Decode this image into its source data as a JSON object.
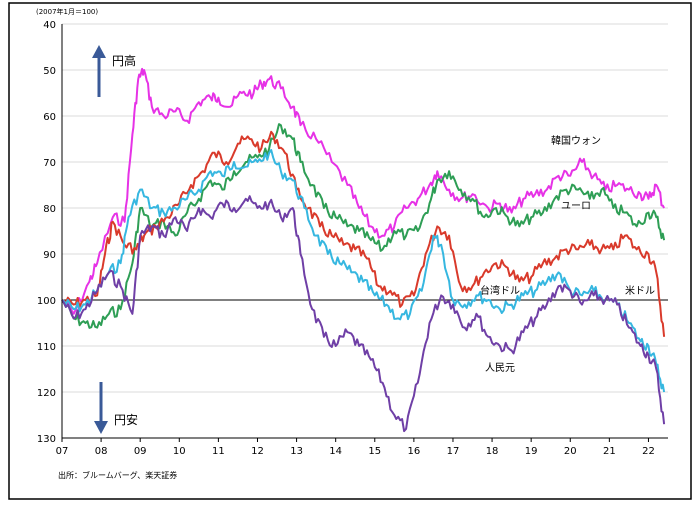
{
  "chart_data": {
    "type": "line",
    "note_top": "(2007年1月＝100)",
    "source": "出所：ブルームバーグ、楽天証券",
    "annotation_up": "円高",
    "annotation_down": "円安",
    "yaxis": {
      "min": 40,
      "max": 130,
      "ticks": [
        40,
        50,
        60,
        70,
        80,
        90,
        100,
        110,
        120,
        130
      ],
      "inverted": true
    },
    "xaxis": {
      "min": 2007,
      "max": 2022.5,
      "tick_labels": [
        "07",
        "08",
        "09",
        "10",
        "11",
        "12",
        "13",
        "14",
        "15",
        "16",
        "17",
        "18",
        "19",
        "20",
        "21",
        "22"
      ]
    },
    "reference_line": 100,
    "colors": {
      "korea": "#e632e6",
      "euro": "#2e9e55",
      "usd": "#d93a2b",
      "twd": "#36b7e0",
      "cny": "#6f3fa6",
      "axis": "#000000",
      "grid": "#cfcfcf"
    },
    "series": [
      {
        "key": "korea",
        "name": "韓国ウォン",
        "x": [
          2007.0,
          2007.3,
          2007.7,
          2007.9,
          2008.3,
          2008.6,
          2008.8,
          2008.95,
          2009.1,
          2009.3,
          2009.6,
          2009.9,
          2010.2,
          2010.5,
          2010.8,
          2011.0,
          2011.3,
          2011.6,
          2011.9,
          2012.1,
          2012.3,
          2012.6,
          2012.9,
          2013.1,
          2013.5,
          2013.9,
          2014.3,
          2014.6,
          2014.9,
          2015.2,
          2015.5,
          2015.8,
          2016.1,
          2016.4,
          2016.6,
          2016.9,
          2017.2,
          2017.5,
          2017.9,
          2018.2,
          2018.5,
          2018.8,
          2019.1,
          2019.4,
          2019.7,
          2020.0,
          2020.3,
          2020.6,
          2020.9,
          2021.2,
          2021.5,
          2021.8,
          2022.0,
          2022.2,
          2022.4
        ],
        "values": [
          100,
          103,
          96,
          92,
          82,
          83,
          64,
          52,
          50,
          58,
          60,
          59,
          61,
          57,
          56,
          56,
          58,
          55,
          55,
          53,
          52,
          54,
          58,
          62,
          65,
          70,
          75,
          80,
          84,
          86,
          84,
          80,
          78,
          75,
          72,
          76,
          78,
          77,
          80,
          79,
          81,
          78,
          77,
          76,
          73,
          73,
          70,
          73,
          76,
          75,
          76,
          77,
          78,
          75,
          80
        ]
      },
      {
        "key": "euro",
        "name": "ユーロ",
        "x": [
          2007.0,
          2007.3,
          2007.6,
          2007.9,
          2008.2,
          2008.5,
          2008.8,
          2009.0,
          2009.3,
          2009.6,
          2009.9,
          2010.2,
          2010.5,
          2010.8,
          2011.1,
          2011.4,
          2011.7,
          2012.0,
          2012.3,
          2012.6,
          2012.9,
          2013.1,
          2013.4,
          2013.7,
          2014.0,
          2014.3,
          2014.6,
          2014.9,
          2015.2,
          2015.5,
          2015.8,
          2016.1,
          2016.4,
          2016.6,
          2016.9,
          2017.2,
          2017.5,
          2017.8,
          2018.1,
          2018.4,
          2018.7,
          2019.0,
          2019.3,
          2019.6,
          2019.9,
          2020.2,
          2020.5,
          2020.8,
          2021.1,
          2021.4,
          2021.7,
          2022.0,
          2022.2,
          2022.4
        ],
        "values": [
          100,
          104,
          105,
          106,
          103,
          102,
          92,
          80,
          84,
          83,
          86,
          81,
          78,
          74,
          76,
          72,
          70,
          69,
          67,
          62,
          65,
          70,
          75,
          80,
          82,
          84,
          85,
          87,
          89,
          85,
          86,
          85,
          79,
          74,
          72,
          76,
          78,
          82,
          80,
          82,
          84,
          82,
          81,
          78,
          76,
          76,
          78,
          76,
          80,
          81,
          84,
          81,
          82,
          87
        ]
      },
      {
        "key": "usd",
        "name": "米ドル",
        "x": [
          2007.0,
          2007.3,
          2007.6,
          2007.9,
          2008.1,
          2008.3,
          2008.6,
          2008.9,
          2009.1,
          2009.4,
          2009.7,
          2010.0,
          2010.3,
          2010.6,
          2010.9,
          2011.2,
          2011.5,
          2011.8,
          2012.1,
          2012.4,
          2012.7,
          2013.0,
          2013.3,
          2013.6,
          2013.9,
          2014.2,
          2014.5,
          2014.8,
          2015.1,
          2015.4,
          2015.7,
          2016.0,
          2016.3,
          2016.6,
          2016.9,
          2017.2,
          2017.5,
          2017.8,
          2018.1,
          2018.4,
          2018.7,
          2019.0,
          2019.3,
          2019.6,
          2019.9,
          2020.2,
          2020.5,
          2020.8,
          2021.1,
          2021.4,
          2021.7,
          2022.0,
          2022.2,
          2022.4
        ],
        "values": [
          100,
          101,
          100,
          99,
          90,
          83,
          88,
          89,
          86,
          84,
          82,
          79,
          75,
          72,
          68,
          70,
          66,
          65,
          67,
          64,
          68,
          76,
          80,
          84,
          86,
          88,
          89,
          91,
          97,
          98,
          101,
          99,
          90,
          84,
          86,
          97,
          97,
          94,
          92,
          93,
          96,
          95,
          92,
          91,
          89,
          89,
          88,
          89,
          89,
          86,
          89,
          90,
          94,
          108
        ]
      },
      {
        "key": "twd",
        "name": "台湾ドル",
        "x": [
          2007.0,
          2007.3,
          2007.6,
          2007.9,
          2008.2,
          2008.5,
          2008.7,
          2009.0,
          2009.3,
          2009.6,
          2009.9,
          2010.2,
          2010.5,
          2010.8,
          2011.1,
          2011.4,
          2011.7,
          2012.0,
          2012.3,
          2012.6,
          2012.9,
          2013.2,
          2013.5,
          2013.8,
          2014.1,
          2014.4,
          2014.7,
          2015.0,
          2015.3,
          2015.6,
          2015.9,
          2016.2,
          2016.5,
          2016.7,
          2017.0,
          2017.3,
          2017.6,
          2017.9,
          2018.2,
          2018.5,
          2018.8,
          2019.1,
          2019.4,
          2019.7,
          2020.0,
          2020.3,
          2020.6,
          2020.9,
          2021.2,
          2021.5,
          2021.8,
          2022.0,
          2022.2,
          2022.4
        ],
        "values": [
          100,
          102,
          101,
          98,
          94,
          92,
          82,
          76,
          80,
          81,
          80,
          78,
          76,
          72,
          73,
          70,
          71,
          70,
          68,
          72,
          74,
          80,
          86,
          90,
          92,
          94,
          96,
          99,
          101,
          104,
          103,
          98,
          86,
          88,
          100,
          101,
          99,
          100,
          102,
          101,
          99,
          98,
          96,
          94,
          98,
          99,
          98,
          100,
          101,
          105,
          109,
          110,
          114,
          120
        ]
      },
      {
        "key": "cny",
        "name": "人民元",
        "x": [
          2007.0,
          2007.3,
          2007.6,
          2007.9,
          2008.2,
          2008.5,
          2008.8,
          2009.0,
          2009.3,
          2009.6,
          2009.9,
          2010.2,
          2010.5,
          2010.8,
          2011.1,
          2011.4,
          2011.7,
          2012.0,
          2012.3,
          2012.6,
          2012.9,
          2013.1,
          2013.4,
          2013.7,
          2014.0,
          2014.3,
          2014.6,
          2014.9,
          2015.2,
          2015.5,
          2015.8,
          2016.1,
          2016.4,
          2016.7,
          2017.0,
          2017.3,
          2017.6,
          2017.9,
          2018.2,
          2018.5,
          2018.8,
          2019.1,
          2019.4,
          2019.7,
          2020.0,
          2020.3,
          2020.6,
          2020.9,
          2021.2,
          2021.5,
          2021.8,
          2022.0,
          2022.2,
          2022.4
        ],
        "values": [
          100,
          104,
          102,
          98,
          94,
          97,
          103,
          86,
          84,
          86,
          82,
          85,
          80,
          82,
          79,
          80,
          78,
          80,
          79,
          82,
          80,
          90,
          102,
          108,
          110,
          107,
          110,
          113,
          118,
          125,
          128,
          118,
          105,
          99,
          101,
          106,
          103,
          108,
          110,
          111,
          107,
          104,
          101,
          97,
          98,
          101,
          99,
          100,
          101,
          106,
          110,
          112,
          115,
          127
        ]
      }
    ]
  }
}
